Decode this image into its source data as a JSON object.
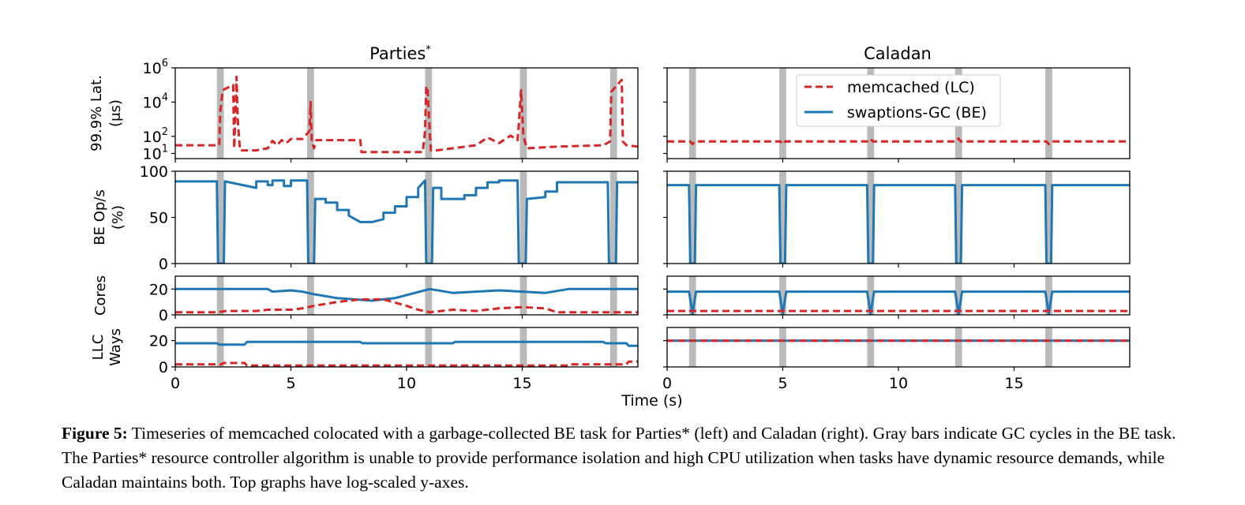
{
  "figure": {
    "xlabel": "Time (s)",
    "colors": {
      "lc": "#d62728",
      "be": "#1f77b4",
      "gc_bar": "#a9a9a9"
    },
    "panels": [
      {
        "title": "Parties",
        "title_suffix": "*"
      },
      {
        "title": "Caladan",
        "title_suffix": ""
      }
    ],
    "legend": {
      "placement": "top-right of Caladan latency panel",
      "entries": [
        {
          "label": "memcached (LC)",
          "style": "dashed",
          "color": "#d62728"
        },
        {
          "label": "swaptions-GC (BE)",
          "style": "solid",
          "color": "#1f77b4"
        }
      ]
    }
  },
  "caption": {
    "label": "Figure 5:",
    "text": "Timeseries of memcached colocated with a garbage-collected BE task for Parties* (left) and Caladan (right). Gray bars indicate GC cycles in the BE task. The Parties* resource controller algorithm is unable to provide performance isolation and high CPU utilization when tasks have dynamic resource demands, while Caladan maintains both. Top graphs have log-scaled y-axes."
  },
  "chart_data": [
    {
      "type": "line",
      "title": "Parties*",
      "xlabel": "Time (s)",
      "xlim": [
        0,
        20
      ],
      "xticks": [
        "0",
        "5",
        "10",
        "15"
      ],
      "gc_cycles": [
        [
          1.8,
          2.1
        ],
        [
          5.7,
          6.0
        ],
        [
          10.8,
          11.1
        ],
        [
          14.9,
          15.2
        ],
        [
          18.8,
          19.1
        ]
      ],
      "rows": [
        {
          "ylabel": "99.9% Lat. (μs)",
          "yscale": "log",
          "ylim": [
            5,
            1000000
          ],
          "yticks": [
            "10^6",
            "10^4",
            "10^2",
            "10^1"
          ],
          "series": [
            {
              "name": "memcached (LC)",
              "x": [
                0,
                1.9,
                1.95,
                2.05,
                2.5,
                2.55,
                2.65,
                2.7,
                2.8,
                3.5,
                4.0,
                4.2,
                4.4,
                4.6,
                4.8,
                5.0,
                5.5,
                5.8,
                5.85,
                5.9,
                6.0,
                6.1,
                8.0,
                8.05,
                10.7,
                10.8,
                10.85,
                10.9,
                11.0,
                11.05,
                11.3,
                13.0,
                13.5,
                14.0,
                14.5,
                14.8,
                14.85,
                14.95,
                15.05,
                15.2,
                16.5,
                18.5,
                18.8,
                18.85,
                19.3,
                19.35,
                19.5,
                20.0
              ],
              "y": [
                30,
                30,
                3000,
                50000,
                100000,
                20,
                300000,
                1000,
                15,
                15,
                20,
                55,
                30,
                60,
                40,
                70,
                70,
                200,
                10000,
                50,
                20,
                60,
                60,
                12,
                12,
                200,
                80000,
                80000,
                200,
                15,
                15,
                30,
                85,
                40,
                110,
                60,
                500,
                50000,
                100,
                20,
                25,
                30,
                50,
                40000,
                200000,
                50,
                30,
                25
              ]
            }
          ]
        },
        {
          "ylabel": "BE Op/s (%)",
          "yscale": "linear",
          "ylim": [
            0,
            100
          ],
          "yticks": [
            "100",
            "50",
            "0"
          ],
          "series": [
            {
              "name": "swaptions-GC (BE)",
              "x": [
                0,
                1.8,
                1.85,
                2.1,
                2.15,
                3.5,
                3.5,
                4.0,
                4.0,
                4.2,
                4.2,
                4.7,
                4.7,
                5.0,
                5.0,
                5.7,
                5.75,
                6.0,
                6.05,
                6.5,
                6.5,
                7.0,
                7.0,
                7.5,
                7.5,
                8.0,
                8.5,
                9.0,
                9.0,
                9.5,
                9.5,
                10.0,
                10.0,
                10.5,
                10.5,
                10.8,
                10.85,
                11.1,
                11.15,
                11.5,
                11.5,
                12.5,
                12.5,
                13.0,
                13.0,
                13.5,
                13.5,
                14.0,
                14.0,
                14.8,
                14.85,
                15.15,
                15.2,
                16.0,
                16.0,
                16.5,
                16.5,
                18.7,
                18.75,
                19.05,
                19.1,
                20.0
              ],
              "y": [
                89,
                89,
                0,
                0,
                89,
                82,
                89,
                89,
                85,
                85,
                90,
                90,
                84,
                84,
                90,
                90,
                0,
                0,
                70,
                70,
                66,
                66,
                58,
                58,
                52,
                45,
                45,
                48,
                55,
                55,
                62,
                62,
                72,
                72,
                82,
                90,
                0,
                0,
                82,
                82,
                70,
                70,
                74,
                74,
                82,
                82,
                88,
                88,
                90,
                90,
                0,
                0,
                70,
                72,
                78,
                78,
                88,
                88,
                0,
                0,
                88,
                88
              ]
            }
          ]
        },
        {
          "ylabel": "Cores",
          "yscale": "linear",
          "ylim": [
            0,
            30
          ],
          "yticks": [
            "20",
            "0"
          ],
          "series": [
            {
              "name": "swaptions-GC (BE)",
              "x": [
                0,
                4.0,
                4.2,
                5.0,
                5.5,
                6.0,
                7.0,
                8.5,
                9.5,
                11.0,
                12.0,
                14.0,
                16.0,
                17.0,
                20.0
              ],
              "y": [
                20,
                20,
                18,
                19,
                18,
                16,
                13,
                11,
                13,
                20,
                17,
                19,
                17,
                20,
                20
              ]
            },
            {
              "name": "memcached (LC)",
              "x": [
                0,
                1.8,
                2.2,
                3.5,
                4.0,
                5.0,
                5.5,
                6.0,
                7.0,
                8.0,
                9.0,
                10.0,
                10.5,
                11.0,
                12.0,
                13.0,
                14.0,
                15.0,
                16.0,
                16.5,
                18.0,
                20.0
              ],
              "y": [
                2,
                2,
                3,
                3,
                4,
                4,
                5,
                7,
                10,
                12,
                12,
                7,
                4,
                2,
                4,
                3,
                5,
                6,
                5,
                2,
                2,
                2
              ]
            }
          ]
        },
        {
          "ylabel": "LLC Ways",
          "yscale": "linear",
          "ylim": [
            0,
            30
          ],
          "yticks": [
            "20",
            "0"
          ],
          "series": [
            {
              "name": "swaptions-GC (BE)",
              "x": [
                0,
                1.8,
                1.9,
                3.0,
                3.1,
                8.0,
                8.1,
                12.0,
                12.1,
                18.5,
                18.6,
                19.5,
                19.6,
                20.0
              ],
              "y": [
                18,
                18,
                17,
                17,
                19,
                19,
                18,
                18,
                19,
                19,
                18,
                18,
                16,
                16
              ]
            },
            {
              "name": "memcached (LC)",
              "x": [
                0,
                2.0,
                2.1,
                3.0,
                3.1,
                17.0,
                17.1,
                19.5,
                19.6,
                20.0
              ],
              "y": [
                2,
                2,
                3,
                3,
                1,
                1,
                2,
                2,
                4,
                4
              ]
            }
          ]
        }
      ]
    },
    {
      "type": "line",
      "title": "Caladan",
      "xlabel": "Time (s)",
      "xlim": [
        0,
        20
      ],
      "xticks": [
        "0",
        "5",
        "10",
        "15"
      ],
      "gc_cycles": [
        [
          0.95,
          1.25
        ],
        [
          4.85,
          5.15
        ],
        [
          8.65,
          8.95
        ],
        [
          12.45,
          12.75
        ],
        [
          16.35,
          16.65
        ]
      ],
      "rows": [
        {
          "ylabel": "99.9% Lat. (μs)",
          "yscale": "log",
          "ylim": [
            5,
            1000000
          ],
          "yticks": [],
          "series": [
            {
              "name": "memcached (LC)",
              "x": [
                0,
                1.0,
                1.1,
                1.2,
                4.9,
                5.0,
                5.1,
                8.7,
                8.8,
                8.9,
                12.5,
                12.6,
                12.7,
                16.4,
                16.5,
                16.6,
                20.0
              ],
              "y": [
                50,
                50,
                35,
                50,
                50,
                35,
                50,
                50,
                70,
                50,
                50,
                75,
                50,
                50,
                35,
                50,
                50
              ]
            }
          ]
        },
        {
          "ylabel": "BE Op/s (%)",
          "yscale": "linear",
          "ylim": [
            0,
            100
          ],
          "yticks": [],
          "series": [
            {
              "name": "swaptions-GC (BE)",
              "x": [
                0,
                0.95,
                1.0,
                1.2,
                1.25,
                4.85,
                4.9,
                5.1,
                5.15,
                8.65,
                8.7,
                8.9,
                8.95,
                12.45,
                12.5,
                12.7,
                12.75,
                16.35,
                16.4,
                16.6,
                16.65,
                20.0
              ],
              "y": [
                85,
                85,
                0,
                0,
                85,
                85,
                0,
                0,
                85,
                85,
                0,
                0,
                85,
                85,
                0,
                0,
                85,
                85,
                0,
                0,
                85,
                85
              ]
            }
          ]
        },
        {
          "ylabel": "Cores",
          "yscale": "linear",
          "ylim": [
            0,
            30
          ],
          "yticks": [],
          "series": [
            {
              "name": "swaptions-GC (BE)",
              "x": [
                0,
                0.95,
                1.1,
                1.25,
                4.85,
                5.0,
                5.15,
                8.65,
                8.8,
                8.95,
                12.45,
                12.6,
                12.75,
                16.35,
                16.5,
                16.65,
                20.0
              ],
              "y": [
                18,
                18,
                1,
                18,
                18,
                1,
                18,
                18,
                1,
                18,
                18,
                1,
                18,
                18,
                1,
                18,
                18
              ]
            },
            {
              "name": "memcached (LC)",
              "x": [
                0,
                20.0
              ],
              "y": [
                3,
                3
              ]
            }
          ]
        },
        {
          "ylabel": "LLC Ways",
          "yscale": "linear",
          "ylim": [
            0,
            30
          ],
          "yticks": [],
          "series": [
            {
              "name": "swaptions-GC (BE)",
              "x": [
                0,
                20.0
              ],
              "y": [
                20,
                20
              ]
            },
            {
              "name": "memcached (LC)",
              "x": [
                0,
                20.0
              ],
              "y": [
                20,
                20
              ]
            }
          ]
        }
      ]
    }
  ]
}
